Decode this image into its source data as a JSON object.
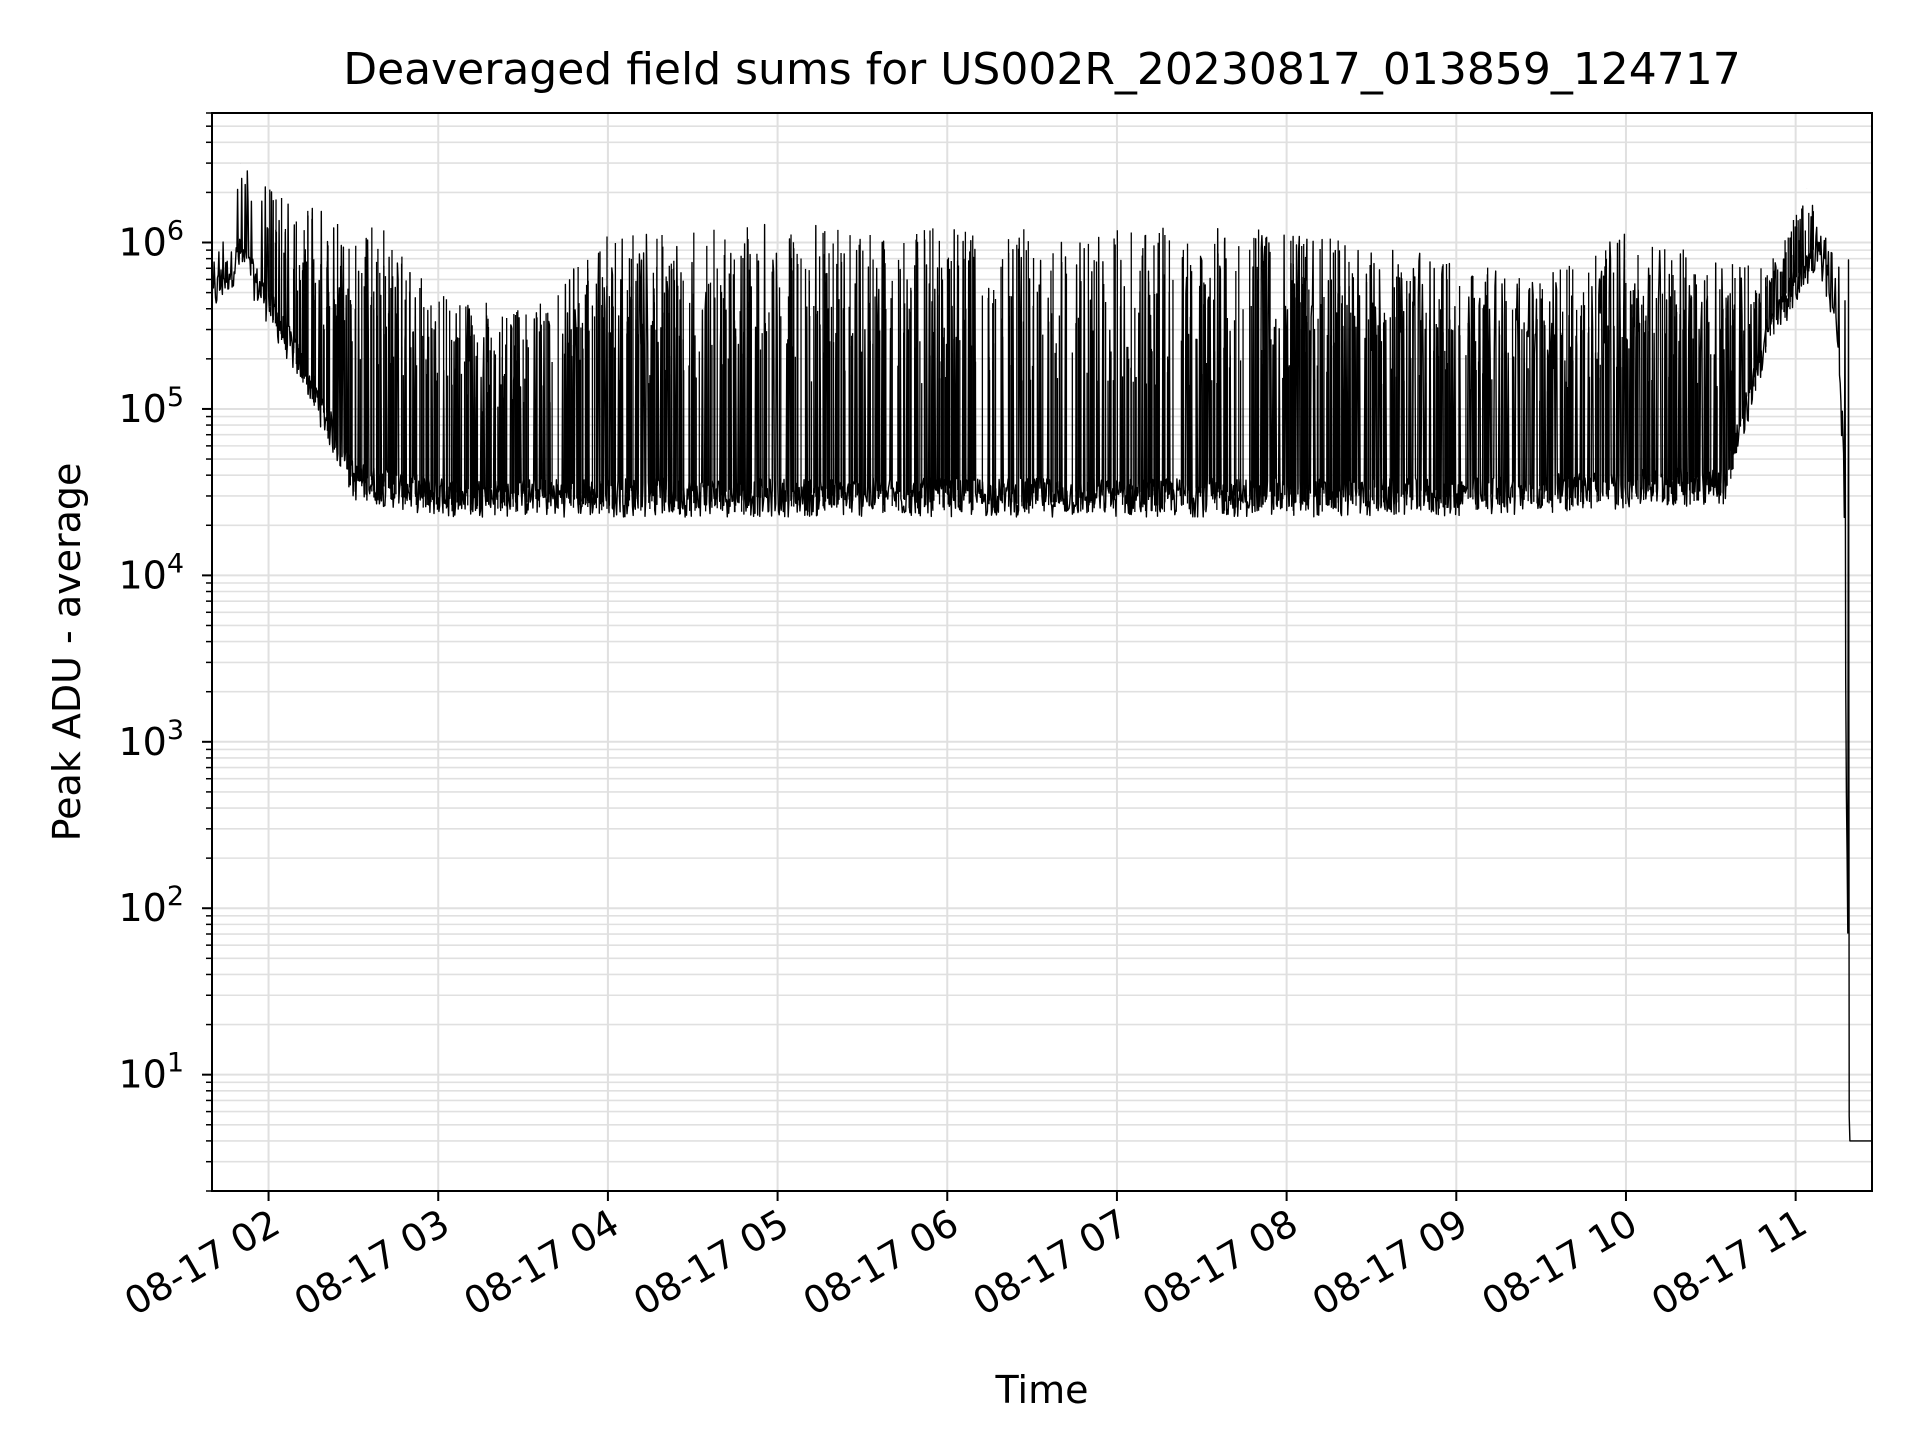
{
  "chart_data": {
    "type": "line",
    "title": "Deaveraged field sums for US002R_20230817_013859_124717",
    "xlabel": "Time",
    "ylabel": "Peak ADU - average",
    "yscale": "log",
    "xlim": [
      "2023-08-17 01:40",
      "2023-08-17 11:27"
    ],
    "ylim": [
      2.0,
      6000000
    ],
    "grid": true,
    "line_color": "#000000",
    "grid_color": "#e0e0e0",
    "x_ticks": [
      {
        "value": "2023-08-17 02:00",
        "label": "08-17 02"
      },
      {
        "value": "2023-08-17 03:00",
        "label": "08-17 03"
      },
      {
        "value": "2023-08-17 04:00",
        "label": "08-17 04"
      },
      {
        "value": "2023-08-17 05:00",
        "label": "08-17 05"
      },
      {
        "value": "2023-08-17 06:00",
        "label": "08-17 06"
      },
      {
        "value": "2023-08-17 07:00",
        "label": "08-17 07"
      },
      {
        "value": "2023-08-17 08:00",
        "label": "08-17 08"
      },
      {
        "value": "2023-08-17 09:00",
        "label": "08-17 09"
      },
      {
        "value": "2023-08-17 10:00",
        "label": "08-17 10"
      },
      {
        "value": "2023-08-17 11:00",
        "label": "08-17 11"
      }
    ],
    "y_ticks": [
      {
        "value": 10,
        "base": "10",
        "exp": "1"
      },
      {
        "value": 100,
        "base": "10",
        "exp": "2"
      },
      {
        "value": 1000,
        "base": "10",
        "exp": "3"
      },
      {
        "value": 10000,
        "base": "10",
        "exp": "4"
      },
      {
        "value": 100000,
        "base": "10",
        "exp": "5"
      },
      {
        "value": 1000000,
        "base": "10",
        "exp": "6"
      }
    ],
    "baseline_envelope": [
      {
        "time": "2023-08-17 01:40",
        "low": 500000
      },
      {
        "time": "2023-08-17 01:50",
        "low": 900000
      },
      {
        "time": "2023-08-17 02:00",
        "low": 450000
      },
      {
        "time": "2023-08-17 02:15",
        "low": 150000
      },
      {
        "time": "2023-08-17 02:30",
        "low": 40000
      },
      {
        "time": "2023-08-17 03:00",
        "low": 32000
      },
      {
        "time": "2023-08-17 06:00",
        "low": 32000
      },
      {
        "time": "2023-08-17 09:00",
        "low": 32000
      },
      {
        "time": "2023-08-17 10:35",
        "low": 38000
      },
      {
        "time": "2023-08-17 10:50",
        "low": 300000
      },
      {
        "time": "2023-08-17 11:00",
        "low": 600000
      },
      {
        "time": "2023-08-17 11:08",
        "low": 1000000
      },
      {
        "time": "2023-08-17 11:14",
        "low": 400000
      },
      {
        "time": "2023-08-17 11:17",
        "low": 60000
      },
      {
        "time": "2023-08-17 11:19",
        "low": 4.0
      },
      {
        "time": "2023-08-17 11:27",
        "low": 4.0
      }
    ],
    "spike_envelope": [
      {
        "time": "2023-08-17 01:40",
        "peak": 700000
      },
      {
        "time": "2023-08-17 01:50",
        "peak": 3000000
      },
      {
        "time": "2023-08-17 02:10",
        "peak": 1700000
      },
      {
        "time": "2023-08-17 02:40",
        "peak": 1300000
      },
      {
        "time": "2023-08-17 03:00",
        "peak": 500000
      },
      {
        "time": "2023-08-17 03:30",
        "peak": 400000
      },
      {
        "time": "2023-08-17 04:00",
        "peak": 1200000
      },
      {
        "time": "2023-08-17 05:00",
        "peak": 1300000
      },
      {
        "time": "2023-08-17 07:00",
        "peak": 1250000
      },
      {
        "time": "2023-08-17 08:00",
        "peak": 1200000
      },
      {
        "time": "2023-08-17 09:00",
        "peak": 800000
      },
      {
        "time": "2023-08-17 09:30",
        "peak": 600000
      },
      {
        "time": "2023-08-17 10:00",
        "peak": 1200000
      },
      {
        "time": "2023-08-17 10:50",
        "peak": 700000
      },
      {
        "time": "2023-08-17 11:04",
        "peak": 2100000
      },
      {
        "time": "2023-08-17 11:14",
        "peak": 800000
      }
    ],
    "notable_points": [
      {
        "time": "2023-08-17 01:50",
        "value": 3000000
      },
      {
        "time": "2023-08-17 11:04",
        "value": 2100000
      },
      {
        "time": "2023-08-17 11:19",
        "value": 4.0
      }
    ]
  }
}
